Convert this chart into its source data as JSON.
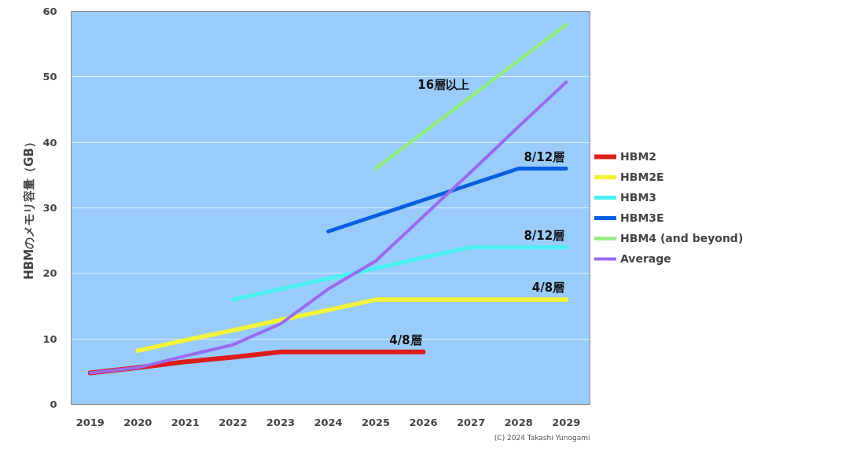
{
  "chart_data": {
    "type": "line",
    "ylabel": "HBMのメモリ容量（GB）",
    "x": [
      2019,
      2020,
      2021,
      2022,
      2023,
      2024,
      2025,
      2026,
      2027,
      2028,
      2029
    ],
    "xlim": [
      2018.6,
      2029.5
    ],
    "xticks": [
      2019,
      2020,
      2021,
      2022,
      2023,
      2024,
      2025,
      2026,
      2027,
      2028,
      2029
    ],
    "ylim": [
      0,
      60
    ],
    "yticks": [
      0,
      10,
      20,
      30,
      40,
      50,
      60
    ],
    "grid": "y",
    "legend": "right",
    "marker": "none",
    "line_style": "solid",
    "series": [
      {
        "name": "HBM2",
        "color": "#dd1c1c",
        "values": [
          4.8,
          5.6,
          6.5,
          7.2,
          8,
          8,
          8,
          8,
          null,
          null,
          null
        ]
      },
      {
        "name": "HBM2E",
        "color": "#f2f23a",
        "values": [
          null,
          8.2,
          9.8,
          11.3,
          12.9,
          14.4,
          16,
          16,
          16,
          16,
          16
        ]
      },
      {
        "name": "HBM3",
        "color": "#4af0f0",
        "values": [
          null,
          null,
          null,
          16,
          17.6,
          19.2,
          20.8,
          22.4,
          24,
          24,
          24
        ]
      },
      {
        "name": "HBM3E",
        "color": "#0a5fe0",
        "values": [
          null,
          null,
          null,
          null,
          null,
          26.4,
          28.8,
          31.2,
          33.6,
          36,
          36
        ]
      },
      {
        "name": "HBM4 (and beyond)",
        "color": "#90ee80",
        "values": [
          null,
          null,
          null,
          null,
          null,
          null,
          36,
          41.5,
          47,
          52.5,
          58
        ]
      },
      {
        "name": "Average",
        "color": "#9a6af0",
        "values": [
          4.8,
          5.6,
          7.4,
          9.1,
          12.3,
          17.6,
          21.9,
          28.7,
          35.5,
          42.4,
          49.2
        ]
      }
    ],
    "annotations": [
      {
        "text": "16層以上",
        "x": 2027,
        "y": 47
      },
      {
        "text": "8/12層",
        "x": 2029,
        "y": 36
      },
      {
        "text": "8/12層",
        "x": 2029,
        "y": 24
      },
      {
        "text": "4/8層",
        "x": 2029,
        "y": 16
      },
      {
        "text": "4/8層",
        "x": 2026,
        "y": 8
      },
      "(C) 2024 Takashi Yunogami"
    ]
  }
}
